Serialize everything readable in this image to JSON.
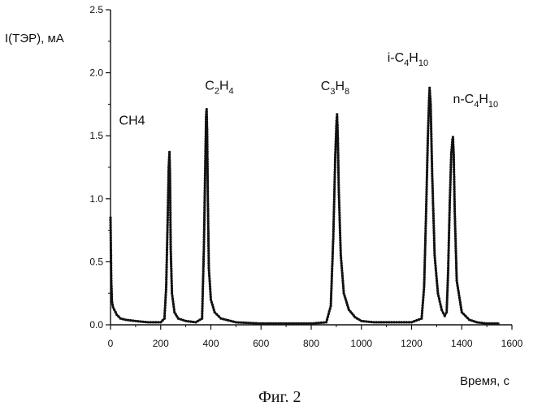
{
  "chart_data": {
    "type": "line",
    "ylabel": "I(ТЭР), мА",
    "xlabel": "Время, с",
    "caption": "Фиг. 2",
    "xlim": [
      0,
      1600
    ],
    "ylim": [
      0,
      2.5
    ],
    "xticks": [
      "0",
      "200",
      "400",
      "600",
      "800",
      "1000",
      "1200",
      "1400",
      "1600"
    ],
    "yticks": [
      "0.0",
      "0.5",
      "1.0",
      "1.5",
      "2.0",
      "2.5"
    ],
    "grid": false,
    "legend": "none",
    "series_color": "#111111",
    "peaks": [
      {
        "label": "CH4",
        "base": "CH",
        "sub": "4",
        "x": 235,
        "y": 1.37
      },
      {
        "label": "C2H4",
        "parts": [
          "C",
          "2",
          "H",
          "4"
        ],
        "x": 383,
        "y": 1.71
      },
      {
        "label": "C3H8",
        "parts": [
          "C",
          "3",
          "H",
          "8"
        ],
        "x": 903,
        "y": 1.67
      },
      {
        "label": "i-C4H10",
        "parts": [
          "i-C",
          "4",
          "H",
          "10"
        ],
        "x": 1272,
        "y": 1.88
      },
      {
        "label": "n-C4H10",
        "parts": [
          "n-C",
          "4",
          "H",
          "10"
        ],
        "x": 1365,
        "y": 1.49
      }
    ],
    "x": [
      0,
      3,
      6,
      10,
      15,
      25,
      40,
      60,
      100,
      150,
      200,
      215,
      222,
      228,
      232,
      235,
      237,
      240,
      245,
      255,
      270,
      300,
      340,
      365,
      372,
      378,
      381,
      383,
      385,
      388,
      392,
      400,
      415,
      440,
      500,
      600,
      700,
      800,
      860,
      878,
      888,
      896,
      901,
      903,
      906,
      910,
      918,
      930,
      950,
      975,
      1000,
      1050,
      1100,
      1150,
      1200,
      1240,
      1250,
      1258,
      1265,
      1270,
      1272,
      1276,
      1282,
      1292,
      1305,
      1320,
      1332,
      1340,
      1346,
      1352,
      1358,
      1363,
      1365,
      1368,
      1372,
      1380,
      1400,
      1430,
      1460,
      1500,
      1550
    ],
    "y": [
      0.85,
      0.35,
      0.18,
      0.14,
      0.12,
      0.08,
      0.05,
      0.04,
      0.03,
      0.02,
      0.02,
      0.05,
      0.3,
      0.85,
      1.25,
      1.37,
      1.2,
      0.6,
      0.25,
      0.1,
      0.05,
      0.03,
      0.02,
      0.05,
      0.6,
      1.3,
      1.65,
      1.71,
      1.55,
      1.0,
      0.45,
      0.2,
      0.1,
      0.05,
      0.02,
      0.01,
      0.01,
      0.01,
      0.02,
      0.15,
      0.7,
      1.35,
      1.62,
      1.67,
      1.5,
      1.05,
      0.55,
      0.25,
      0.12,
      0.06,
      0.03,
      0.02,
      0.02,
      0.02,
      0.02,
      0.05,
      0.3,
      0.9,
      1.5,
      1.8,
      1.88,
      1.75,
      1.2,
      0.55,
      0.25,
      0.12,
      0.07,
      0.1,
      0.45,
      0.95,
      1.35,
      1.47,
      1.49,
      1.35,
      0.9,
      0.35,
      0.1,
      0.04,
      0.02,
      0.01,
      0.01
    ]
  }
}
